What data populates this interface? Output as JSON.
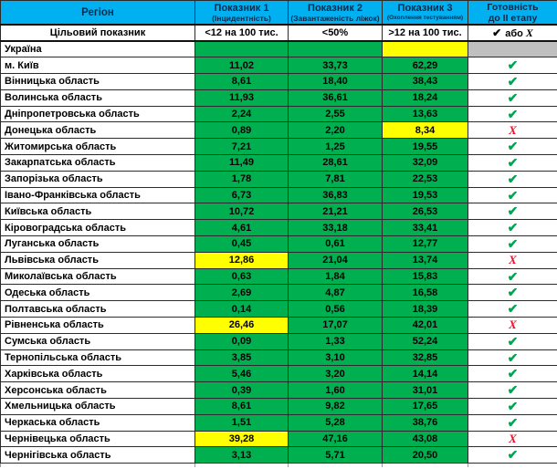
{
  "chart_data": {
    "type": "table",
    "header": {
      "region": "Регіон",
      "indicators": [
        {
          "title": "Показник 1",
          "subtitle": "(Інцидентність)"
        },
        {
          "title": "Показник 2",
          "subtitle": "(Завантаженість ліжок)"
        },
        {
          "title": "Показник 3",
          "subtitle": "(Охоплення тестуванням)"
        }
      ],
      "readiness_line1": "Готовність",
      "readiness_line2": "до ІІ етапу"
    },
    "target_row": {
      "label": "Цільовий показник",
      "indicator_targets": [
        "<12 на 100 тис.",
        "<50%",
        ">12 на 100 тис."
      ],
      "readiness": {
        "check": "✔",
        "or": "або",
        "cross": "Х"
      }
    },
    "rows": [
      {
        "region": "Україна",
        "values": [
          "",
          "",
          ""
        ],
        "colors": [
          "green",
          "green",
          "yellow"
        ],
        "status": "empty"
      },
      {
        "region": "м. Київ",
        "values": [
          "11,02",
          "33,73",
          "62,29"
        ],
        "colors": [
          "green",
          "green",
          "green"
        ],
        "status": "check"
      },
      {
        "region": "Вінницька область",
        "values": [
          "8,61",
          "18,40",
          "38,43"
        ],
        "colors": [
          "green",
          "green",
          "green"
        ],
        "status": "check"
      },
      {
        "region": "Волинська область",
        "values": [
          "11,93",
          "36,61",
          "18,24"
        ],
        "colors": [
          "green",
          "green",
          "green"
        ],
        "status": "check"
      },
      {
        "region": "Дніпропетровська область",
        "values": [
          "2,24",
          "2,55",
          "13,63"
        ],
        "colors": [
          "green",
          "green",
          "green"
        ],
        "status": "check"
      },
      {
        "region": "Донецька область",
        "values": [
          "0,89",
          "2,20",
          "8,34"
        ],
        "colors": [
          "green",
          "green",
          "yellow"
        ],
        "status": "cross"
      },
      {
        "region": "Житомирська область",
        "values": [
          "7,21",
          "1,25",
          "19,55"
        ],
        "colors": [
          "green",
          "green",
          "green"
        ],
        "status": "check"
      },
      {
        "region": "Закарпатська область",
        "values": [
          "11,49",
          "28,61",
          "32,09"
        ],
        "colors": [
          "green",
          "green",
          "green"
        ],
        "status": "check"
      },
      {
        "region": "Запорізька область",
        "values": [
          "1,78",
          "7,81",
          "22,53"
        ],
        "colors": [
          "green",
          "green",
          "green"
        ],
        "status": "check"
      },
      {
        "region": "Івано-Франківська область",
        "values": [
          "6,73",
          "36,83",
          "19,53"
        ],
        "colors": [
          "green",
          "green",
          "green"
        ],
        "status": "check"
      },
      {
        "region": "Київська область",
        "values": [
          "10,72",
          "21,21",
          "26,53"
        ],
        "colors": [
          "green",
          "green",
          "green"
        ],
        "status": "check"
      },
      {
        "region": "Кіровоградська область",
        "values": [
          "4,61",
          "33,18",
          "33,41"
        ],
        "colors": [
          "green",
          "green",
          "green"
        ],
        "status": "check"
      },
      {
        "region": "Луганська область",
        "values": [
          "0,45",
          "0,61",
          "12,77"
        ],
        "colors": [
          "green",
          "green",
          "green"
        ],
        "status": "check"
      },
      {
        "region": "Львівська область",
        "values": [
          "12,86",
          "21,04",
          "13,74"
        ],
        "colors": [
          "yellow",
          "green",
          "green"
        ],
        "status": "cross"
      },
      {
        "region": "Миколаївська область",
        "values": [
          "0,63",
          "1,84",
          "15,83"
        ],
        "colors": [
          "green",
          "green",
          "green"
        ],
        "status": "check"
      },
      {
        "region": "Одеська область",
        "values": [
          "2,69",
          "4,87",
          "16,58"
        ],
        "colors": [
          "green",
          "green",
          "green"
        ],
        "status": "check"
      },
      {
        "region": "Полтавська область",
        "values": [
          "0,14",
          "0,56",
          "18,39"
        ],
        "colors": [
          "green",
          "green",
          "green"
        ],
        "status": "check"
      },
      {
        "region": "Рівненська область",
        "values": [
          "26,46",
          "17,07",
          "42,01"
        ],
        "colors": [
          "yellow",
          "green",
          "green"
        ],
        "status": "cross"
      },
      {
        "region": "Сумська область",
        "values": [
          "0,09",
          "1,33",
          "52,24"
        ],
        "colors": [
          "green",
          "green",
          "green"
        ],
        "status": "check"
      },
      {
        "region": "Тернопільська область",
        "values": [
          "3,85",
          "3,10",
          "32,85"
        ],
        "colors": [
          "green",
          "green",
          "green"
        ],
        "status": "check"
      },
      {
        "region": "Харківська область",
        "values": [
          "5,46",
          "3,20",
          "14,14"
        ],
        "colors": [
          "green",
          "green",
          "green"
        ],
        "status": "check"
      },
      {
        "region": "Херсонська область",
        "values": [
          "0,39",
          "1,60",
          "31,01"
        ],
        "colors": [
          "green",
          "green",
          "green"
        ],
        "status": "check"
      },
      {
        "region": "Хмельницька область",
        "values": [
          "8,61",
          "9,82",
          "17,65"
        ],
        "colors": [
          "green",
          "green",
          "green"
        ],
        "status": "check"
      },
      {
        "region": "Черкаська область",
        "values": [
          "1,51",
          "5,28",
          "38,76"
        ],
        "colors": [
          "green",
          "green",
          "green"
        ],
        "status": "check"
      },
      {
        "region": "Чернівецька область",
        "values": [
          "39,28",
          "47,16",
          "43,08"
        ],
        "colors": [
          "yellow",
          "green",
          "green"
        ],
        "status": "cross"
      },
      {
        "region": "Чернігівська область",
        "values": [
          "3,13",
          "5,71",
          "20,50"
        ],
        "colors": [
          "green",
          "green",
          "green"
        ],
        "status": "check"
      }
    ]
  },
  "colors": {
    "header_blue": "#00B0F0",
    "cell_green": "#00B050",
    "cell_yellow": "#FFFF00",
    "cell_gray": "#BFBFBF",
    "check_green": "#00A551",
    "cross_red": "#E8112D"
  },
  "icons": {
    "check": "✔",
    "cross": "Х"
  }
}
